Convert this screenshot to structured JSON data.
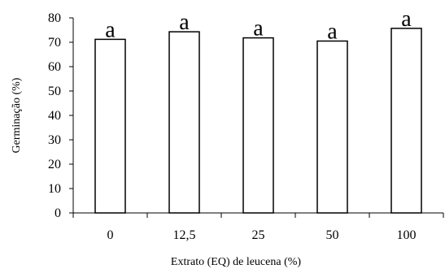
{
  "chart_data": {
    "type": "bar",
    "categories": [
      "0",
      "12,5",
      "25",
      "50",
      "100"
    ],
    "values": [
      71.2,
      74.3,
      71.8,
      70.5,
      75.7
    ],
    "annotations": [
      "a",
      "a",
      "a",
      "a",
      "a"
    ],
    "xlabel": "Extrato (EQ) de leucena  (%)",
    "ylabel": "Germinação (%)",
    "ylim": [
      0,
      80
    ],
    "yticks": [
      "0",
      "10",
      "20",
      "30",
      "40",
      "50",
      "60",
      "70",
      "80"
    ],
    "grid": false,
    "colors": {
      "bar_fill": "#ffffff",
      "bar_stroke": "#000000",
      "axis": "#000000"
    }
  }
}
